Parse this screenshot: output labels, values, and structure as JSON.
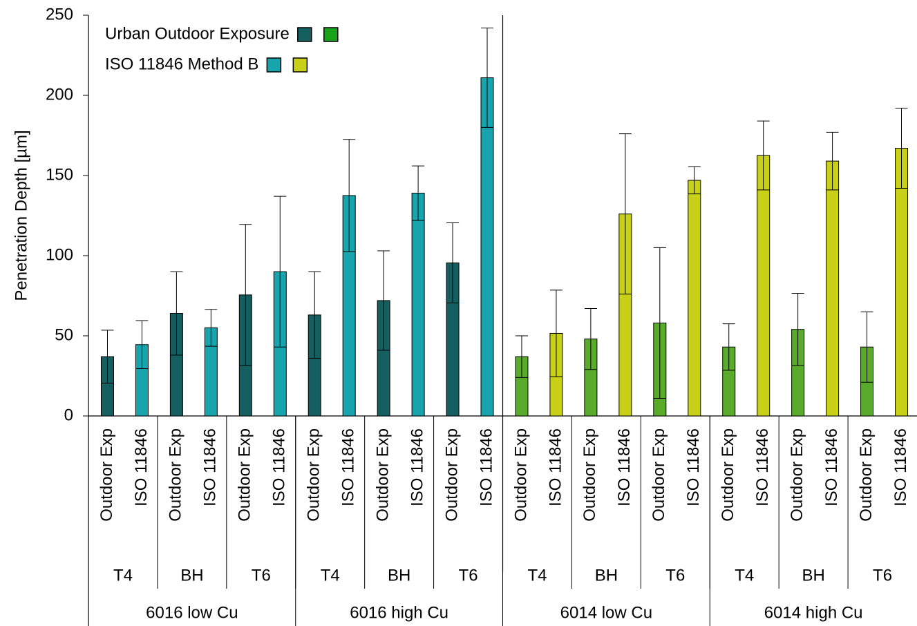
{
  "chart_data": {
    "type": "bar",
    "ylabel": "Penetration Depth [µm]",
    "legend": [
      {
        "name": "Urban Outdoor Exposure",
        "colors": [
          "#165f60",
          "#1aa31a"
        ]
      },
      {
        "name": "ISO 11846 Method B",
        "colors": [
          "#17a4ad",
          "#c8d117"
        ]
      }
    ],
    "groups": [
      "6016 low Cu",
      "6016 high Cu",
      "6014 low Cu",
      "6014 high Cu"
    ],
    "subgroups": [
      "T4",
      "BH",
      "T6",
      "T4",
      "BH",
      "T6",
      "T4",
      "BH",
      "T6",
      "T4",
      "BH",
      "T6"
    ],
    "categories": [
      "Outdoor Exp",
      "ISO 11846",
      "Outdoor Exp",
      "ISO 11846",
      "Outdoor Exp",
      "ISO 11846",
      "Outdoor Exp",
      "ISO 11846",
      "Outdoor Exp",
      "ISO 11846",
      "Outdoor Exp",
      "ISO 11846",
      "Outdoor Exp",
      "ISO 11846",
      "Outdoor Exp",
      "ISO 11846",
      "Outdoor Exp",
      "ISO 11846",
      "Outdoor Exp",
      "ISO 11846",
      "Outdoor Exp",
      "ISO 11846",
      "Outdoor Exp",
      "ISO 11846"
    ],
    "values": [
      37,
      44.5,
      64,
      55,
      75.5,
      90,
      63,
      137.5,
      72,
      139,
      95.5,
      211,
      37,
      51.5,
      48,
      126,
      58,
      147,
      43,
      162.5,
      54,
      159,
      43,
      167
    ],
    "errors": [
      16.5,
      15,
      26,
      11.5,
      44,
      47,
      27,
      35,
      31,
      17,
      25,
      31,
      13,
      27,
      19,
      50,
      47,
      8.5,
      14.5,
      21.5,
      22.5,
      18,
      22,
      25
    ],
    "colors": [
      "#165f60",
      "#17a4ad",
      "#165f60",
      "#17a4ad",
      "#165f60",
      "#17a4ad",
      "#165f60",
      "#17a4ad",
      "#165f60",
      "#17a4ad",
      "#165f60",
      "#17a4ad",
      "#5aab2c",
      "#c8d117",
      "#5aab2c",
      "#c8d117",
      "#5aab2c",
      "#c8d117",
      "#5aab2c",
      "#c8d117",
      "#5aab2c",
      "#c8d117",
      "#5aab2c",
      "#c8d117"
    ],
    "ylim": [
      0,
      250
    ],
    "yticks": [
      0,
      50,
      100,
      150,
      200,
      250
    ]
  }
}
